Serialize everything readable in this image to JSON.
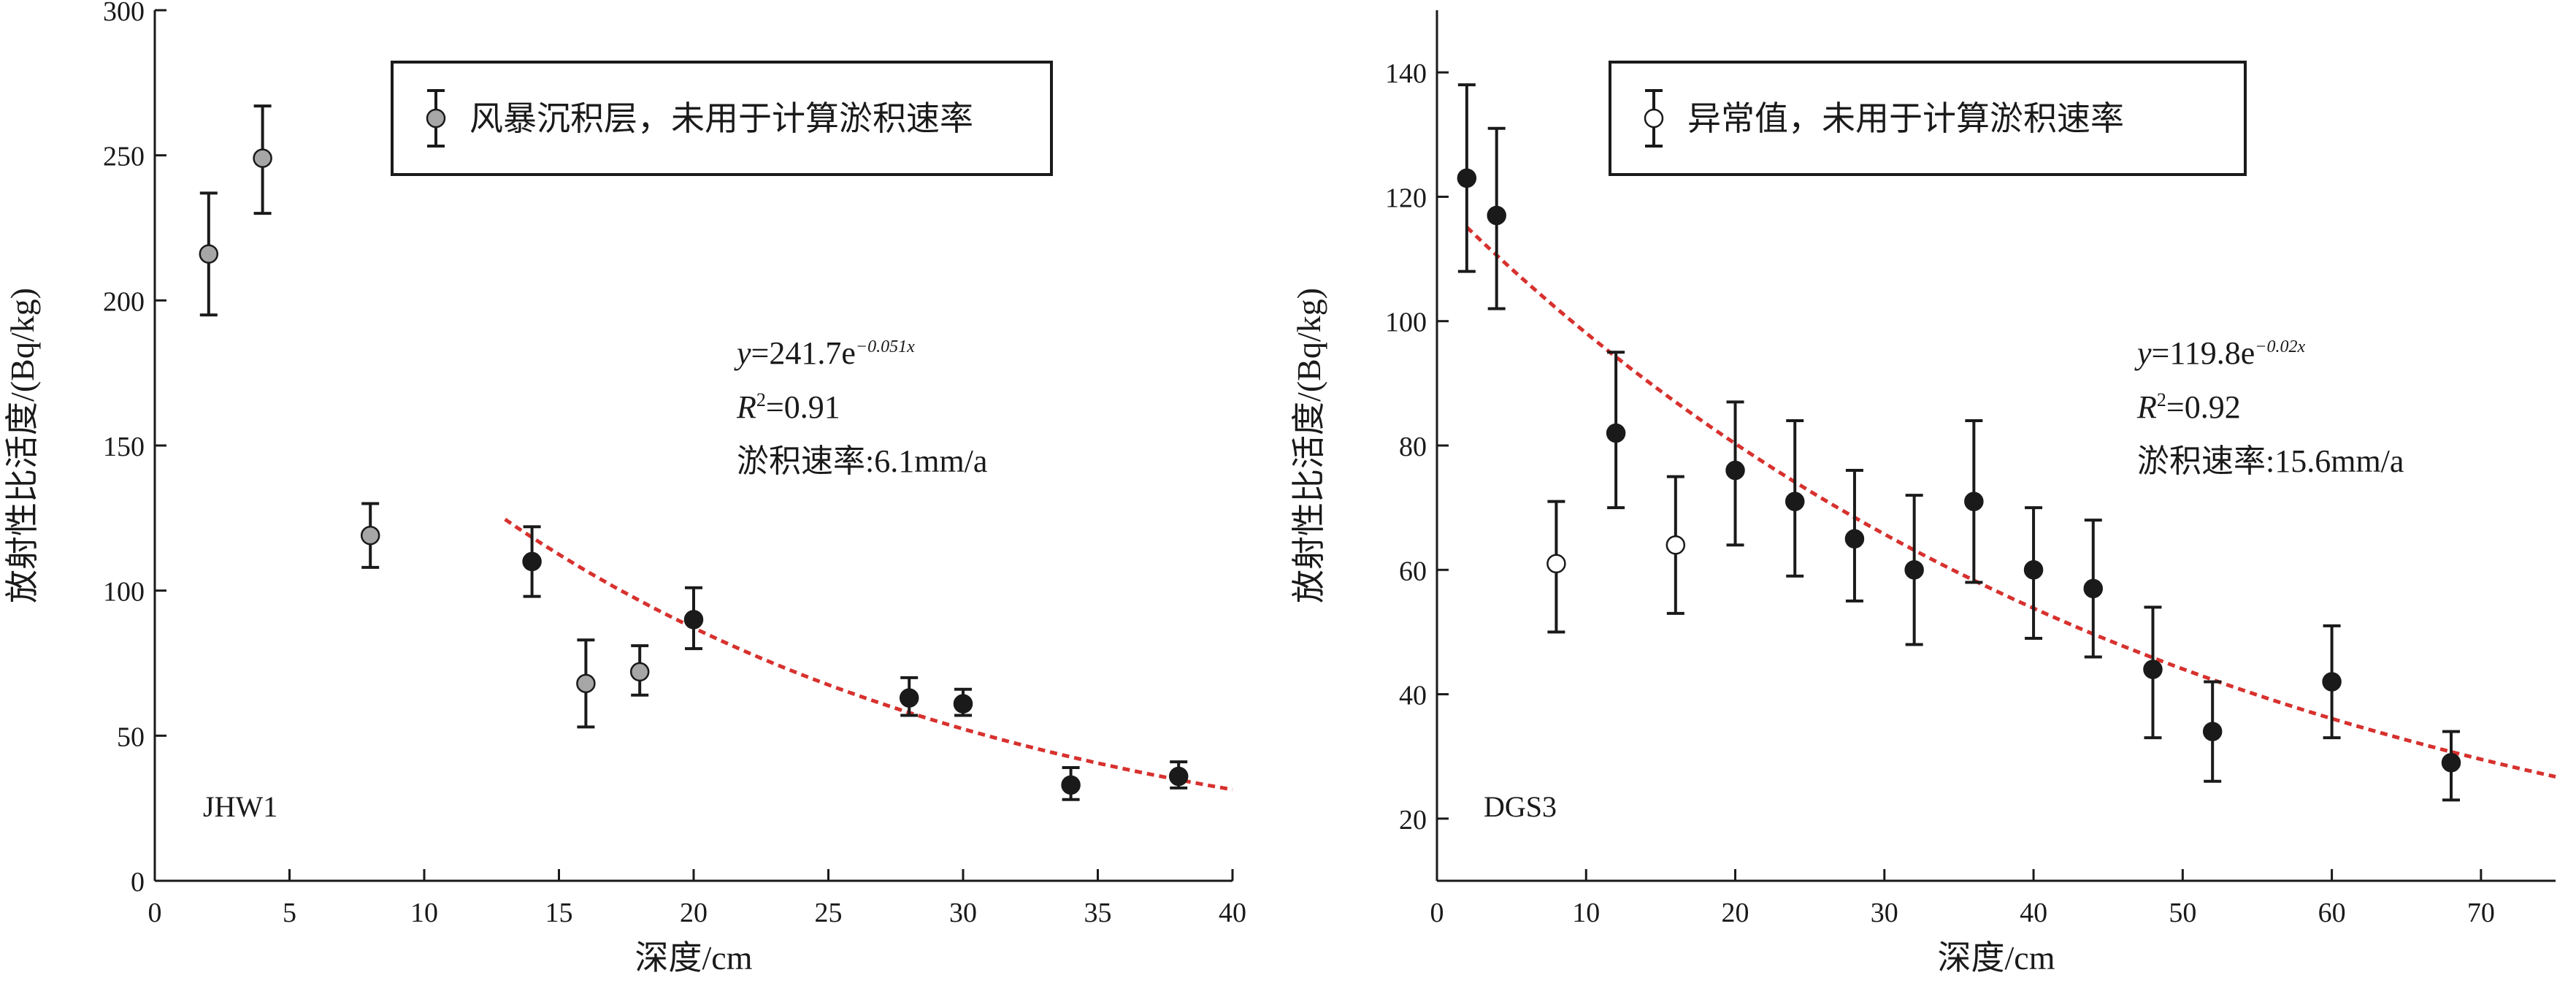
{
  "colors": {
    "axis": "#1a1a1a",
    "fit_line": "#d7312e",
    "filled_point": "#1a1a1a",
    "gray_point": "#a6a6a6",
    "open_point": "#ffffff"
  },
  "chart_data": [
    {
      "id": "left",
      "type": "scatter",
      "site_label": "JHW1",
      "xlabel": "深度/cm",
      "ylabel": "放射性比活度/(Bq/kg)",
      "xlim": [
        0,
        40
      ],
      "ylim": [
        0,
        300
      ],
      "xticks": [
        0,
        5,
        10,
        15,
        20,
        25,
        30,
        35,
        40
      ],
      "yticks": [
        0,
        50,
        100,
        150,
        200,
        250,
        300
      ],
      "grid": false,
      "legend": {
        "label": "风暴沉积层，未用于计算淤积速率",
        "marker": "gray",
        "position": "top"
      },
      "equation": {
        "lhs": "y",
        "mid": "=241.7e",
        "exponent": "−0.051x"
      },
      "r2": {
        "lhs": "R",
        "sup": "2",
        "rhs": "=0.91"
      },
      "rate_text": "淤积速率:6.1mm/a",
      "fit": {
        "a": 241.7,
        "b": -0.051,
        "x_range": [
          13,
          40
        ]
      },
      "series": [
        {
          "name": "风暴沉积层，未用于计算淤积速率",
          "marker": "gray",
          "points": [
            {
              "x": 2,
              "y": 216,
              "err_low": 195,
              "err_high": 237
            },
            {
              "x": 4,
              "y": 249,
              "err_low": 230,
              "err_high": 267
            },
            {
              "x": 8,
              "y": 119,
              "err_low": 108,
              "err_high": 130
            },
            {
              "x": 16,
              "y": 68,
              "err_low": 53,
              "err_high": 83
            },
            {
              "x": 18,
              "y": 72,
              "err_low": 64,
              "err_high": 81
            }
          ]
        },
        {
          "marker": "filled",
          "points": [
            {
              "x": 14,
              "y": 110,
              "err_low": 98,
              "err_high": 122
            },
            {
              "x": 20,
              "y": 90,
              "err_low": 80,
              "err_high": 101
            },
            {
              "x": 28,
              "y": 63,
              "err_low": 57,
              "err_high": 70
            },
            {
              "x": 30,
              "y": 61,
              "err_low": 57,
              "err_high": 66
            },
            {
              "x": 34,
              "y": 33,
              "err_low": 28,
              "err_high": 39
            },
            {
              "x": 38,
              "y": 36,
              "err_low": 32,
              "err_high": 41
            }
          ]
        }
      ]
    },
    {
      "id": "right",
      "type": "scatter",
      "site_label": "DGS3",
      "xlabel": "深度/cm",
      "ylabel": "放射性比活度/(Bq/kg)",
      "xlim": [
        0,
        75
      ],
      "ylim": [
        10,
        150
      ],
      "xticks": [
        0,
        10,
        20,
        30,
        40,
        50,
        60,
        70
      ],
      "yticks": [
        20,
        40,
        60,
        80,
        100,
        120,
        140
      ],
      "grid": false,
      "legend": {
        "label": "异常值，未用于计算淤积速率",
        "marker": "open",
        "position": "top"
      },
      "equation": {
        "lhs": "y",
        "mid": "=119.8e",
        "exponent": "−0.02x"
      },
      "r2": {
        "lhs": "R",
        "sup": "2",
        "rhs": "=0.92"
      },
      "rate_text": "淤积速率:15.6mm/a",
      "fit": {
        "a": 119.8,
        "b": -0.02,
        "x_range": [
          2,
          75
        ]
      },
      "series": [
        {
          "name": "异常值，未用于计算淤积速率",
          "marker": "open",
          "points": [
            {
              "x": 8,
              "y": 61,
              "err_low": 50,
              "err_high": 71
            },
            {
              "x": 16,
              "y": 64,
              "err_low": 53,
              "err_high": 75
            }
          ]
        },
        {
          "marker": "filled",
          "points": [
            {
              "x": 2,
              "y": 123,
              "err_low": 108,
              "err_high": 138
            },
            {
              "x": 4,
              "y": 117,
              "err_low": 102,
              "err_high": 131
            },
            {
              "x": 12,
              "y": 82,
              "err_low": 70,
              "err_high": 95
            },
            {
              "x": 20,
              "y": 76,
              "err_low": 64,
              "err_high": 87
            },
            {
              "x": 24,
              "y": 71,
              "err_low": 59,
              "err_high": 84
            },
            {
              "x": 28,
              "y": 65,
              "err_low": 55,
              "err_high": 76
            },
            {
              "x": 32,
              "y": 60,
              "err_low": 48,
              "err_high": 72
            },
            {
              "x": 36,
              "y": 71,
              "err_low": 58,
              "err_high": 84
            },
            {
              "x": 40,
              "y": 60,
              "err_low": 49,
              "err_high": 70
            },
            {
              "x": 44,
              "y": 57,
              "err_low": 46,
              "err_high": 68
            },
            {
              "x": 48,
              "y": 44,
              "err_low": 33,
              "err_high": 54
            },
            {
              "x": 52,
              "y": 34,
              "err_low": 26,
              "err_high": 42
            },
            {
              "x": 60,
              "y": 42,
              "err_low": 33,
              "err_high": 51
            },
            {
              "x": 68,
              "y": 29,
              "err_low": 23,
              "err_high": 34
            }
          ]
        }
      ]
    }
  ]
}
